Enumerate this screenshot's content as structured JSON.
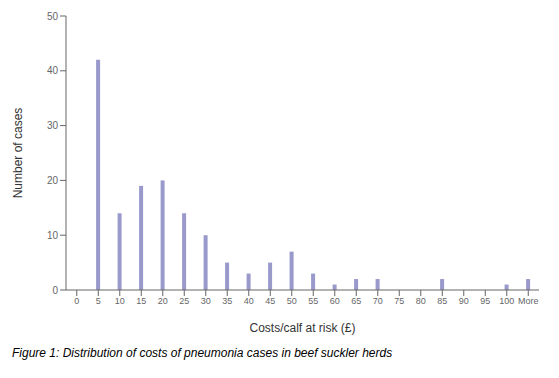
{
  "chart_data": {
    "type": "bar",
    "xlabel": "Costs/calf at risk (£)",
    "ylabel": "Number of cases",
    "caption": "Figure 1: Distribution of costs of pneumonia cases in beef suckler herds",
    "categories": [
      "0",
      "5",
      "10",
      "15",
      "20",
      "25",
      "30",
      "35",
      "40",
      "45",
      "50",
      "55",
      "60",
      "65",
      "70",
      "75",
      "80",
      "85",
      "90",
      "95",
      "100",
      "More"
    ],
    "values": [
      0,
      42,
      14,
      19,
      20,
      14,
      10,
      5,
      3,
      5,
      7,
      3,
      1,
      2,
      2,
      0,
      0,
      2,
      0,
      0,
      1,
      2
    ],
    "color": "#9999cc",
    "ylim": [
      0,
      50
    ],
    "yticks": [
      0,
      10,
      20,
      30,
      40,
      50
    ],
    "grid": false
  }
}
